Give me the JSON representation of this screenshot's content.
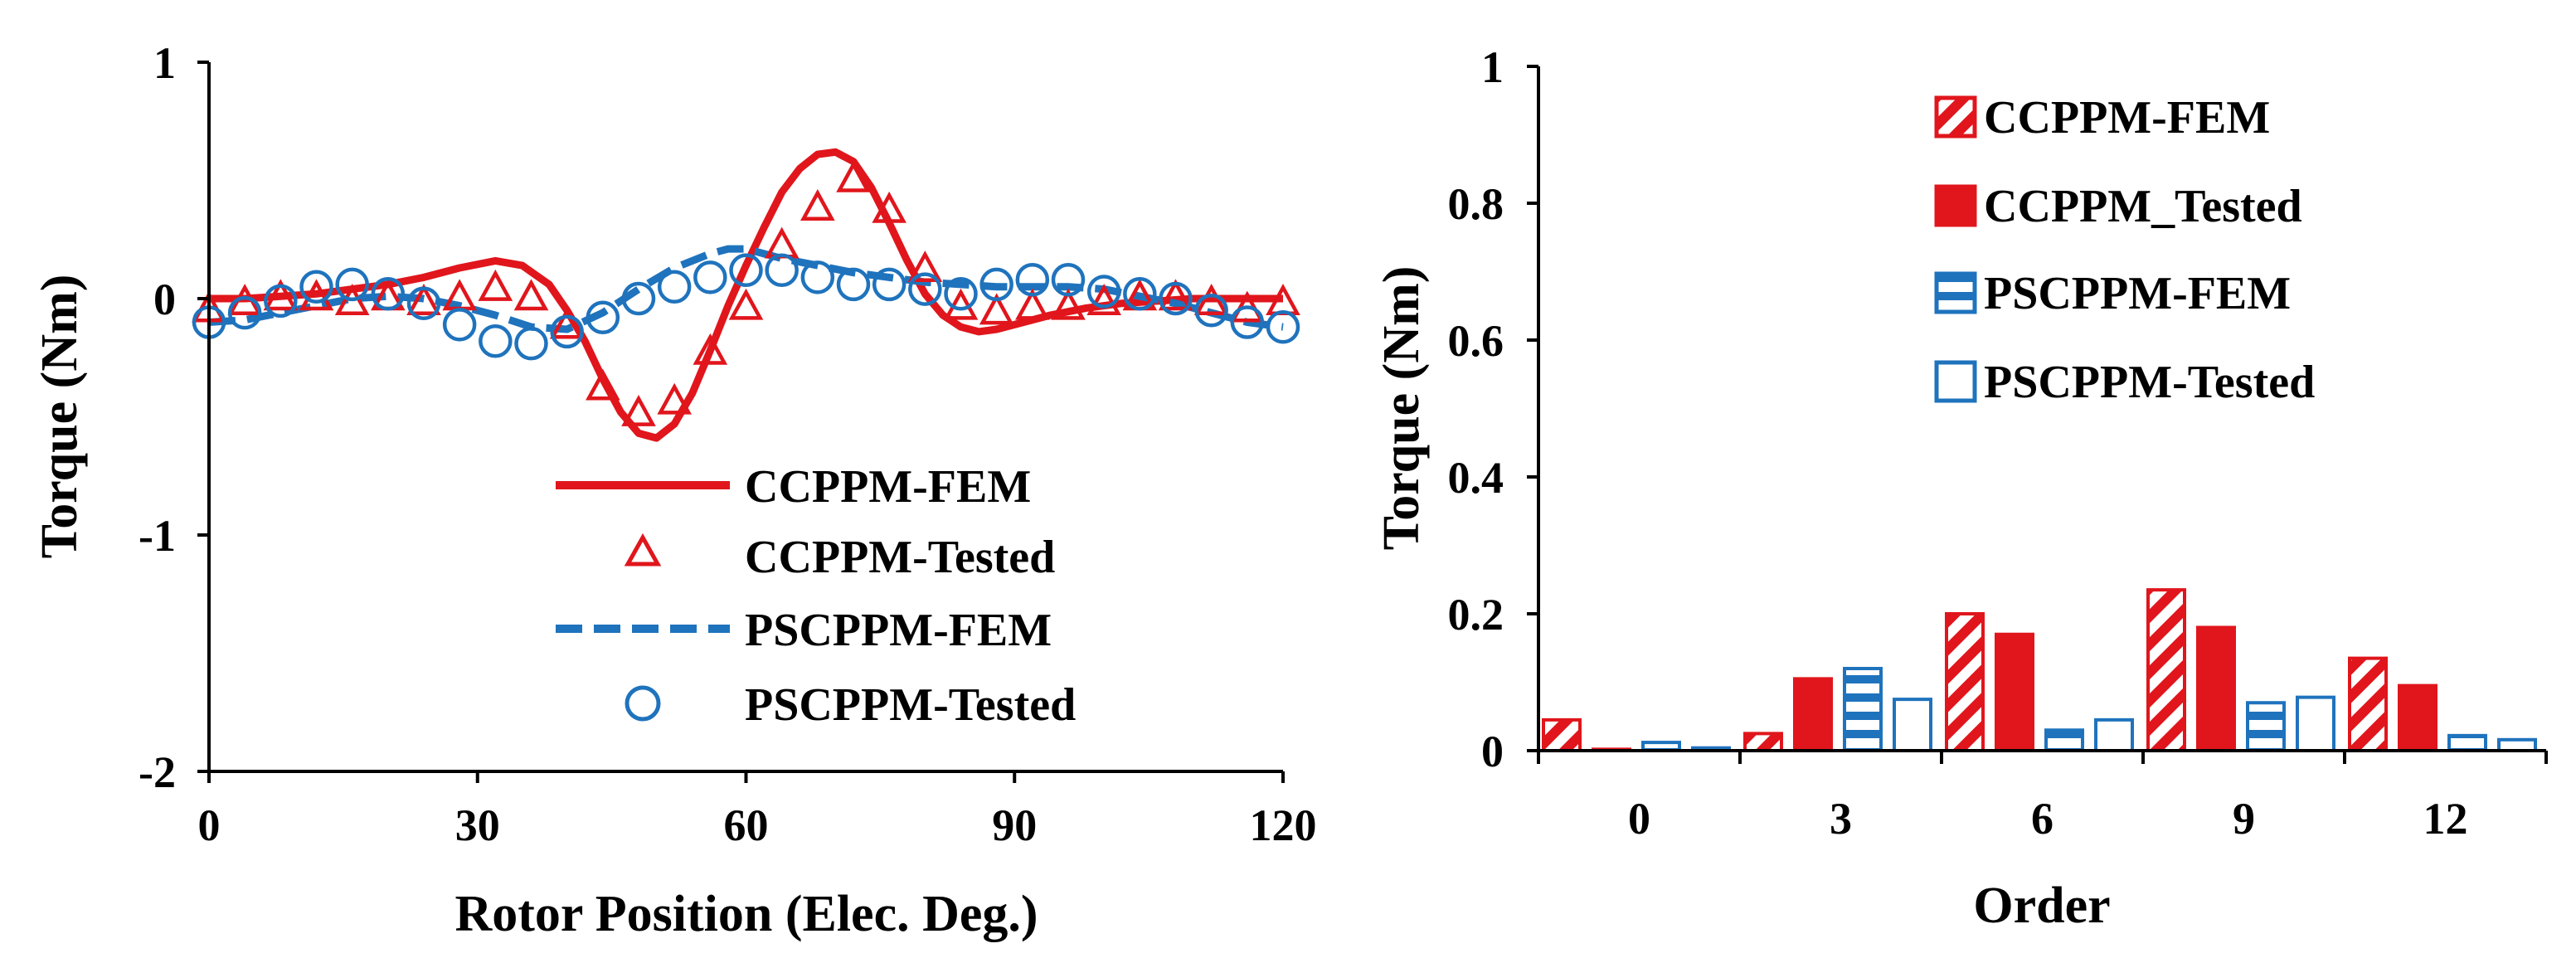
{
  "colors": {
    "red": "#e0161c",
    "blue": "#1f73bd",
    "axis": "#000000"
  },
  "chart_data": [
    {
      "type": "line",
      "xlabel": "Rotor Position (Elec. Deg.)",
      "ylabel": "Torque (Nm)",
      "xlim": [
        0,
        120
      ],
      "ylim": [
        -2,
        1
      ],
      "xticks": [
        0,
        30,
        60,
        90,
        120
      ],
      "yticks": [
        -2,
        -1,
        0,
        1
      ],
      "xtick_labels": [
        "0",
        "30",
        "60",
        "90",
        "120"
      ],
      "ytick_labels": [
        "-2",
        "-1",
        "0",
        "1"
      ],
      "legend_position": "bottom-right",
      "series": [
        {
          "name": "CCPPM-FEM",
          "style": "solid-line",
          "color": "#e0161c",
          "x": [
            0,
            4,
            8,
            12,
            16,
            20,
            24,
            28,
            32,
            35,
            38,
            40,
            42,
            44,
            46,
            48,
            50,
            52,
            54,
            56,
            58,
            60,
            62,
            64,
            66,
            68,
            70,
            72,
            74,
            76,
            78,
            80,
            82,
            84,
            86,
            88,
            90,
            94,
            98,
            102,
            106,
            110,
            114,
            118,
            120
          ],
          "y": [
            0.0,
            0.0,
            0.01,
            0.02,
            0.04,
            0.06,
            0.09,
            0.13,
            0.16,
            0.14,
            0.06,
            -0.05,
            -0.18,
            -0.34,
            -0.48,
            -0.57,
            -0.59,
            -0.53,
            -0.4,
            -0.22,
            -0.03,
            0.14,
            0.3,
            0.45,
            0.55,
            0.61,
            0.62,
            0.58,
            0.47,
            0.32,
            0.16,
            0.02,
            -0.07,
            -0.12,
            -0.14,
            -0.13,
            -0.11,
            -0.07,
            -0.04,
            -0.02,
            -0.01,
            0.0,
            0.0,
            0.0,
            0.0
          ]
        },
        {
          "name": "CCPPM-Tested",
          "style": "triangle-markers",
          "color": "#e0161c",
          "x": [
            0,
            4,
            8,
            12,
            16,
            20,
            24,
            28,
            32,
            36,
            40,
            44,
            48,
            52,
            56,
            60,
            64,
            68,
            72,
            76,
            80,
            84,
            88,
            92,
            96,
            100,
            104,
            108,
            112,
            116,
            120
          ],
          "y": [
            -0.05,
            -0.02,
            0.0,
            0.0,
            -0.02,
            0.0,
            -0.02,
            0.0,
            0.04,
            0.0,
            -0.12,
            -0.38,
            -0.49,
            -0.44,
            -0.23,
            -0.04,
            0.22,
            0.38,
            0.5,
            0.37,
            0.12,
            -0.04,
            -0.06,
            -0.04,
            -0.04,
            -0.02,
            0.0,
            0.0,
            -0.02,
            -0.05,
            -0.02
          ]
        },
        {
          "name": "PSCPPM-FEM",
          "style": "dashed-line",
          "color": "#1f73bd",
          "x": [
            0,
            4,
            8,
            12,
            16,
            20,
            24,
            28,
            32,
            36,
            40,
            44,
            48,
            52,
            56,
            58,
            60,
            62,
            64,
            68,
            72,
            76,
            80,
            84,
            88,
            92,
            96,
            100,
            104,
            108,
            112,
            116,
            120
          ],
          "y": [
            -0.1,
            -0.09,
            -0.06,
            -0.03,
            0.0,
            0.01,
            0.0,
            -0.03,
            -0.07,
            -0.12,
            -0.13,
            -0.06,
            0.04,
            0.13,
            0.19,
            0.21,
            0.21,
            0.19,
            0.17,
            0.14,
            0.11,
            0.09,
            0.07,
            0.06,
            0.05,
            0.05,
            0.05,
            0.04,
            0.01,
            -0.02,
            -0.06,
            -0.1,
            -0.12
          ]
        },
        {
          "name": "PSCPPM-Tested",
          "style": "circle-markers",
          "color": "#1f73bd",
          "x": [
            0,
            4,
            8,
            12,
            16,
            20,
            24,
            28,
            32,
            36,
            40,
            44,
            48,
            52,
            56,
            60,
            64,
            68,
            72,
            76,
            80,
            84,
            88,
            92,
            96,
            100,
            104,
            108,
            112,
            116,
            120
          ],
          "y": [
            -0.1,
            -0.06,
            -0.01,
            0.05,
            0.06,
            0.02,
            -0.02,
            -0.11,
            -0.18,
            -0.19,
            -0.14,
            -0.08,
            0.0,
            0.05,
            0.09,
            0.12,
            0.12,
            0.09,
            0.06,
            0.06,
            0.04,
            0.02,
            0.06,
            0.08,
            0.08,
            0.03,
            0.02,
            0.0,
            -0.05,
            -0.1,
            -0.12
          ]
        }
      ]
    },
    {
      "type": "bar",
      "xlabel": "Order",
      "ylabel": "Torque (Nm)",
      "ylim": [
        0,
        1
      ],
      "yticks": [
        0,
        0.2,
        0.4,
        0.6,
        0.8,
        1
      ],
      "ytick_labels": [
        "0",
        "0.2",
        "0.4",
        "0.6",
        "0.8",
        "1"
      ],
      "categories": [
        "0",
        "3",
        "6",
        "9",
        "12"
      ],
      "legend_position": "top-right",
      "series": [
        {
          "name": "CCPPM-FEM",
          "pattern": "diagonal-hatch",
          "color": "#e0161c",
          "values": [
            0.045,
            0.025,
            0.2,
            0.235,
            0.135
          ]
        },
        {
          "name": "CCPPM_Tested",
          "pattern": "solid",
          "color": "#e0161c",
          "values": [
            0.002,
            0.105,
            0.17,
            0.18,
            0.095
          ]
        },
        {
          "name": "PSCPPM-FEM",
          "pattern": "horizontal-hatch",
          "color": "#1f73bd",
          "values": [
            0.012,
            0.12,
            0.03,
            0.07,
            0.022
          ]
        },
        {
          "name": "PSCPPM-Tested",
          "pattern": "hollow",
          "color": "#1f73bd",
          "values": [
            0.004,
            0.075,
            0.045,
            0.078,
            0.016
          ]
        }
      ]
    }
  ]
}
